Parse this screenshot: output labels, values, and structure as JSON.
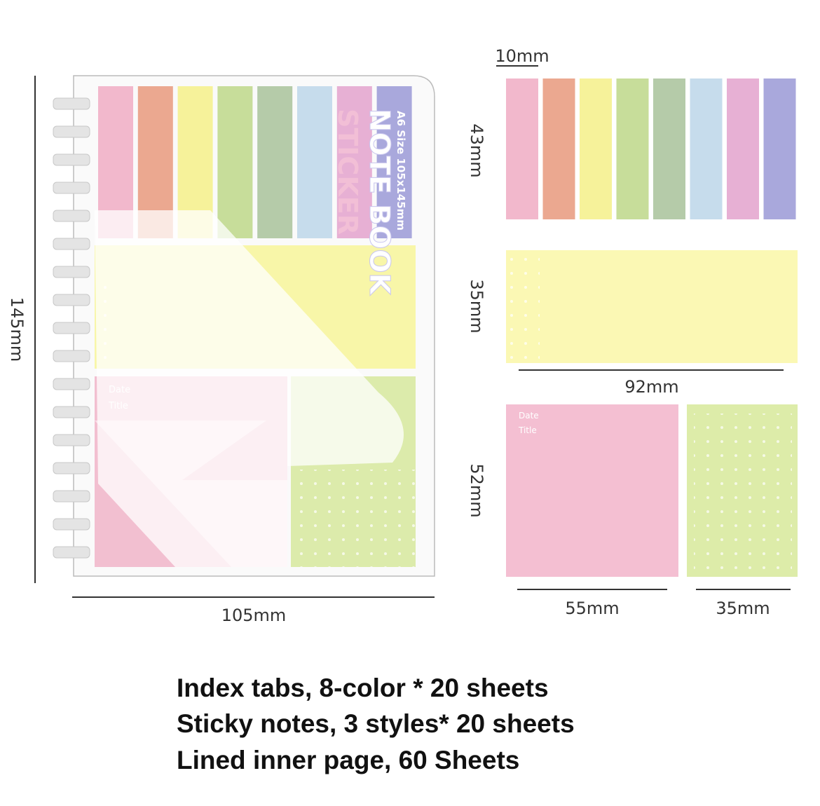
{
  "notebook": {
    "cover_size": "A6 Size 105x145mm",
    "cover_title": "NOTE BOOK",
    "cover_subtitle": "STICKER",
    "note_fields": [
      "Date",
      "Title"
    ],
    "width_label": "105mm",
    "height_label": "145mm"
  },
  "dimensions": {
    "tab_width": "10mm",
    "tab_height": "43mm",
    "strip_height": "35mm",
    "strip_width": "92mm",
    "pad_height": "52mm",
    "pink_pad_width": "55mm",
    "green_pad_width": "35mm",
    "pink_pad_fields": [
      "Date",
      "Title"
    ]
  },
  "description": [
    "Index tabs, 8-color * 20 sheets",
    "Sticky notes, 3 styles* 20 sheets",
    "Lined inner page, 60 Sheets"
  ]
}
